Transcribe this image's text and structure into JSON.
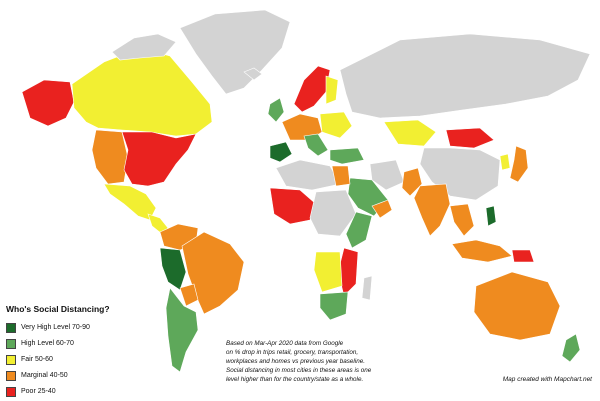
{
  "map": {
    "title": "Who's Social Distancing?",
    "colors": {
      "ocean": "#ffffff",
      "no_data": "#d3d3d3",
      "very_high": "#1c6b2b",
      "high": "#5ea85a",
      "fair": "#f2ef32",
      "marginal": "#ef8b1f",
      "poor": "#e9221f"
    }
  },
  "legend": {
    "items": [
      {
        "label": "Very High Level 70-90",
        "color": "#1c6b2b"
      },
      {
        "label": "High Level 60-70",
        "color": "#5ea85a"
      },
      {
        "label": "Fair 50-60",
        "color": "#f2ef32"
      },
      {
        "label": "Marginal 40-50",
        "color": "#ef8b1f"
      },
      {
        "label": "Poor 25-40",
        "color": "#e9221f"
      }
    ]
  },
  "note": {
    "lines": [
      "Based on Mar-Apr 2020 data from Google",
      "on % drop in trips retail, grocery, transportation,",
      "workplaces and homes vs previous year baseline.",
      "Social distancing in most cities in these areas is one",
      "level higher than for the country/state as a whole."
    ]
  },
  "credit": "Map created with Mapchart.net"
}
